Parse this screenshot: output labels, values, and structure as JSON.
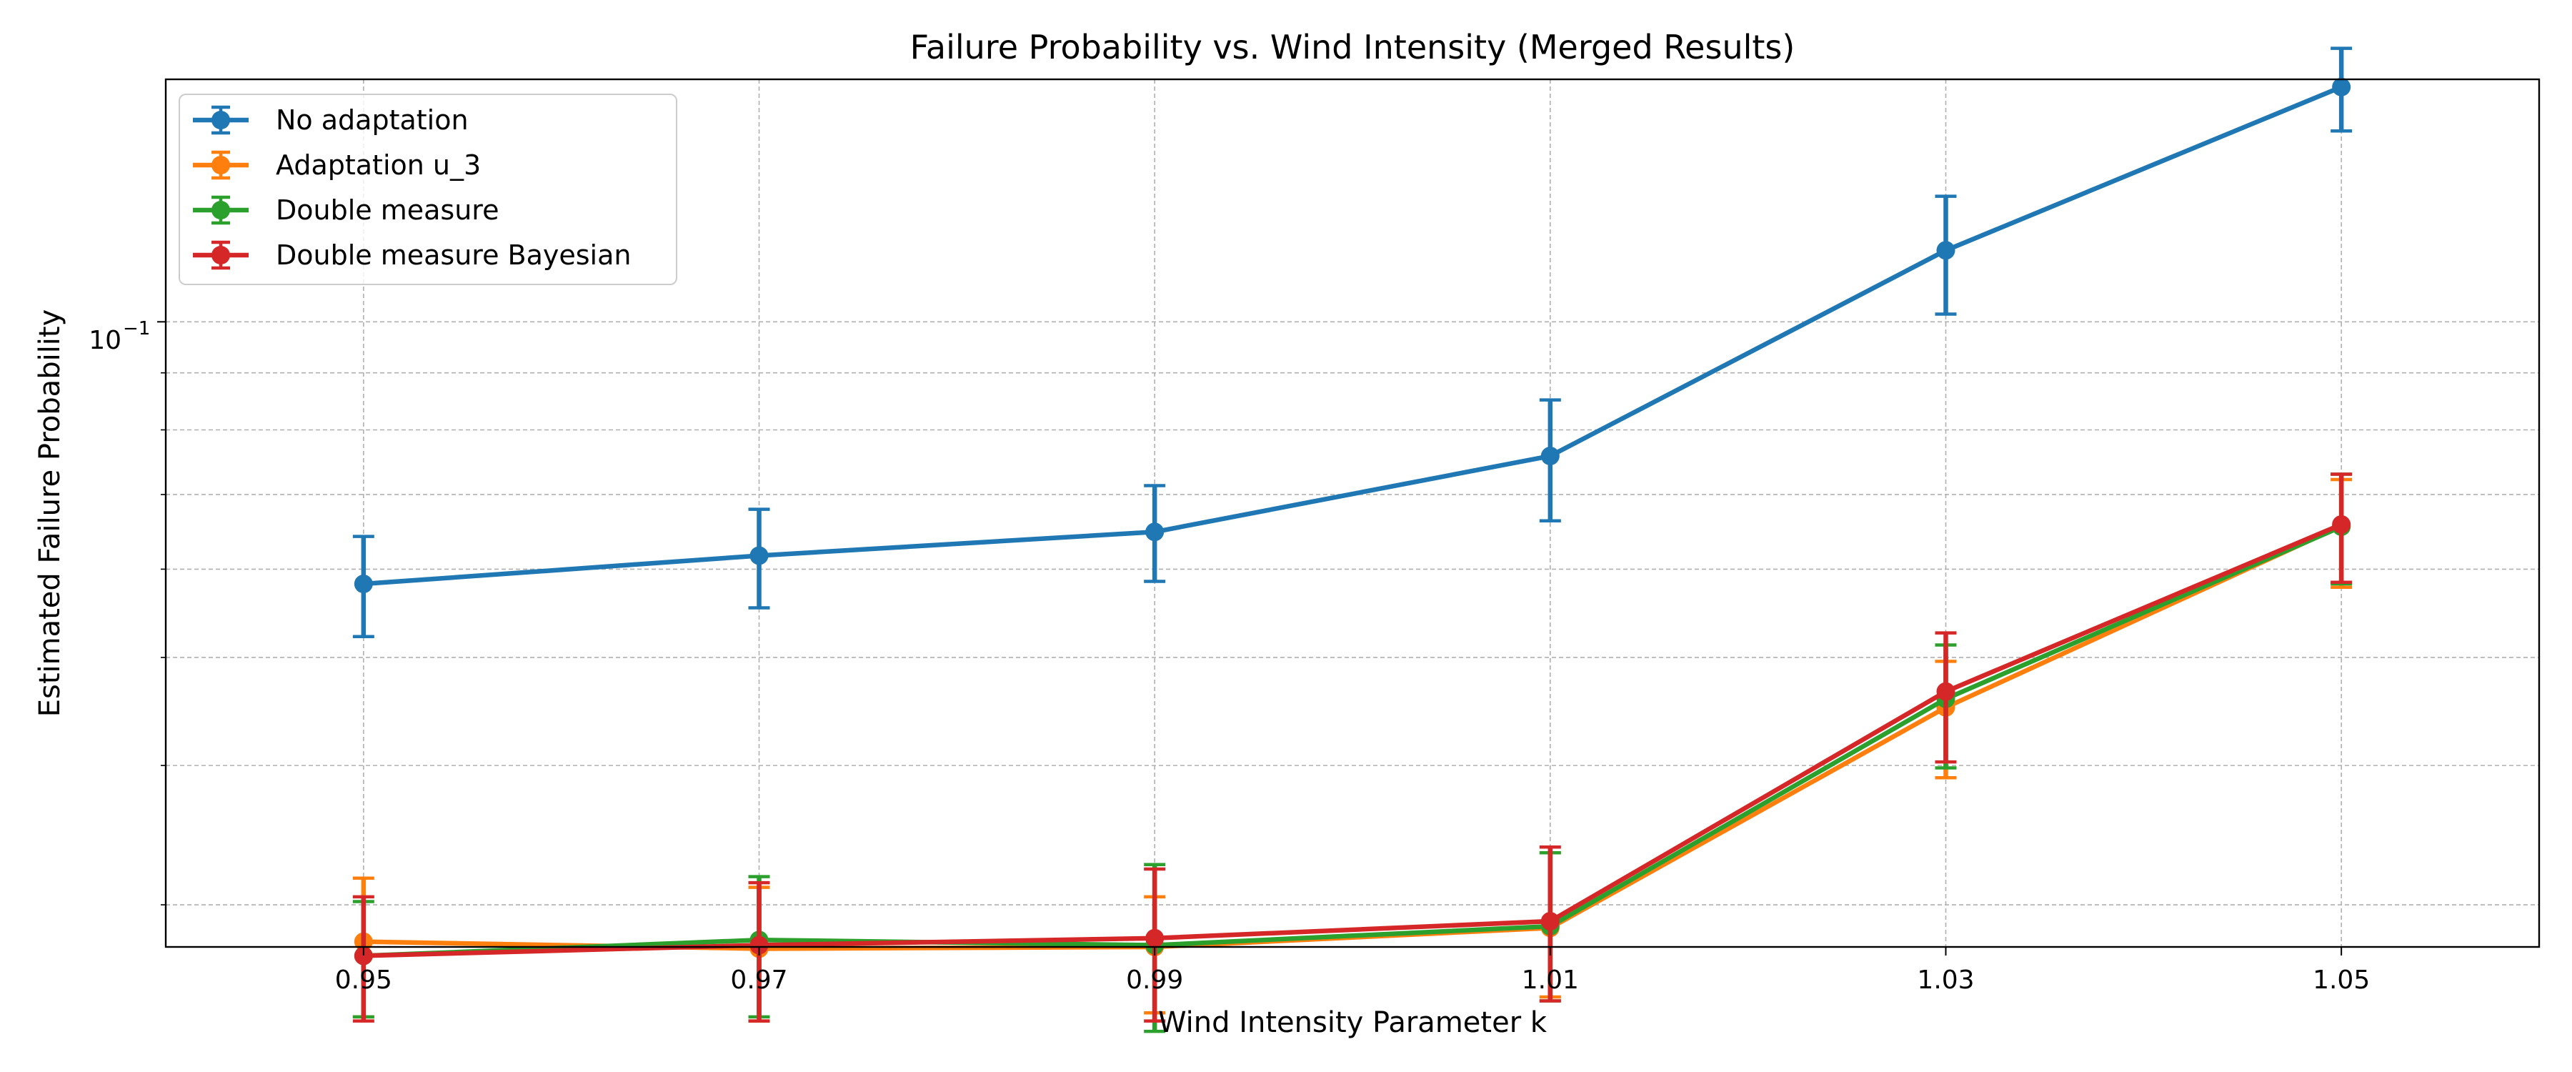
{
  "chart_data": {
    "type": "line",
    "title": "Failure Probability vs. Wind Intensity (Merged Results)",
    "xlabel": "Wind Intensity Parameter k",
    "ylabel": "Estimated Failure Probability",
    "x": [
      0.95,
      0.97,
      0.99,
      1.01,
      1.03,
      1.05
    ],
    "x_tick_labels": [
      "0.95",
      "0.97",
      "0.99",
      "1.01",
      "1.03",
      "1.05"
    ],
    "xlim": [
      0.94,
      1.06
    ],
    "yscale": "log",
    "ylim": [
      0.0275,
      0.165
    ],
    "y_tick_label": "10",
    "y_tick_label_exponent": "−1",
    "y_tick_value": 0.1,
    "y_minor_ticks": [
      0.03,
      0.04,
      0.05,
      0.06,
      0.07,
      0.08,
      0.09
    ],
    "grid": true,
    "legend_position": "top-left",
    "series": [
      {
        "name": "No adaptation",
        "color": "#1f77b4",
        "values": [
          0.0582,
          0.0617,
          0.0648,
          0.0758,
          0.1159,
          0.1624
        ],
        "err_low": [
          0.0522,
          0.0554,
          0.0585,
          0.0663,
          0.1016,
          0.1483
        ],
        "err_high": [
          0.0642,
          0.0679,
          0.0713,
          0.0851,
          0.1296,
          0.1759
        ]
      },
      {
        "name": "Adaptation u_3",
        "color": "#ff7f0e",
        "values": [
          0.0278,
          0.0274,
          0.0275,
          0.0286,
          0.0451,
          0.0656
        ],
        "err_low": [
          0.0238,
          0.0236,
          0.024,
          0.0248,
          0.039,
          0.0578
        ],
        "err_high": [
          0.0317,
          0.0311,
          0.0305,
          0.0334,
          0.0496,
          0.0722
        ]
      },
      {
        "name": "Double measure",
        "color": "#2ca02c",
        "values": [
          0.027,
          0.0279,
          0.0276,
          0.0287,
          0.0459,
          0.0655
        ],
        "err_low": [
          0.0238,
          0.0238,
          0.0231,
          0.0246,
          0.0398,
          0.0582
        ],
        "err_high": [
          0.0302,
          0.0318,
          0.0326,
          0.0334,
          0.0513,
          0.073
        ]
      },
      {
        "name": "Double measure Bayesian",
        "color": "#d62728",
        "values": [
          0.027,
          0.0276,
          0.028,
          0.029,
          0.0466,
          0.0658
        ],
        "err_low": [
          0.0236,
          0.0236,
          0.0236,
          0.0246,
          0.0403,
          0.0584
        ],
        "err_high": [
          0.0305,
          0.0314,
          0.0323,
          0.0338,
          0.0526,
          0.073
        ]
      }
    ]
  }
}
